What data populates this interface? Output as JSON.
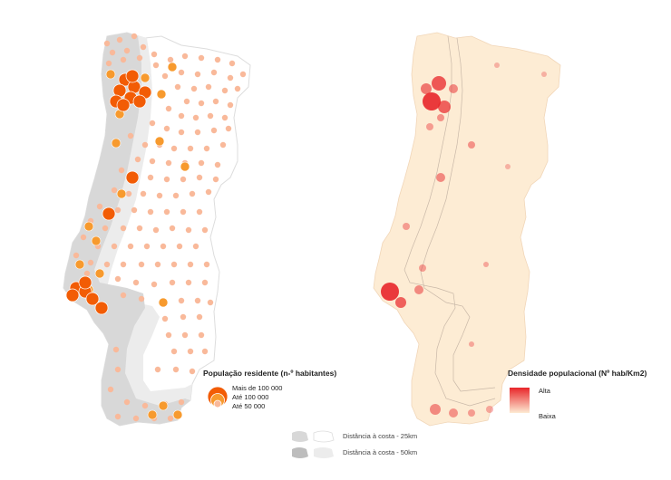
{
  "left_map": {
    "legend": {
      "title": "População residente (n-º habitantes)",
      "items": [
        {
          "label": "Mais de 100 000",
          "color": "#f25c05"
        },
        {
          "label": "Até 100 000",
          "color": "#f79a2e"
        },
        {
          "label": "Até 50 000",
          "color": "#f9b99a"
        }
      ]
    }
  },
  "right_map": {
    "legend": {
      "title": "Densidade populacional (Nº hab/Km2)",
      "high_label": "Alta",
      "low_label": "Baixa",
      "high_color": "#e8262a",
      "low_color": "#fdebd3"
    }
  },
  "bottom_legend": {
    "items": [
      {
        "label": "Distância à costa - 25km"
      },
      {
        "label": "Distância à costa - 50km"
      }
    ]
  },
  "colors": {
    "land": "#ffffff",
    "land_right": "#fdecd4",
    "buffer_25": "#d8d8d8",
    "buffer_50": "#ececec",
    "dot_small": "#f9b99a",
    "dot_medium": "#f79a2e",
    "dot_large": "#f25c05"
  }
}
